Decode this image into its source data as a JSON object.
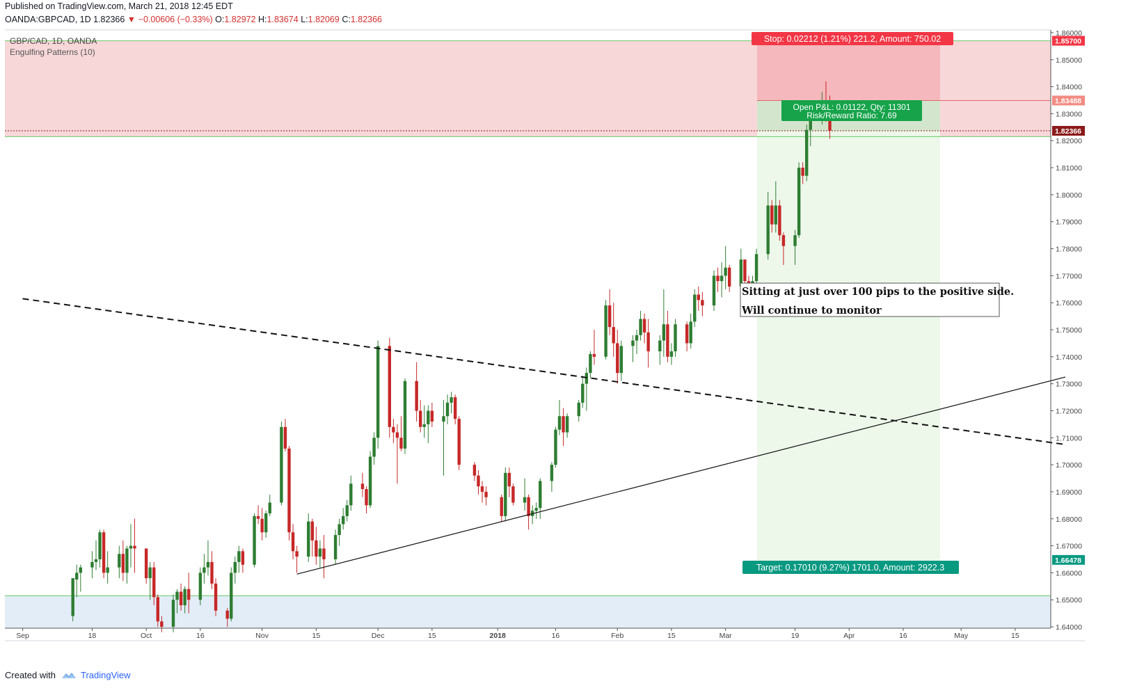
{
  "header": {
    "published": "Published on TradingView.com, March 21, 2018 12:45 EDT",
    "symbol": "OANDA:GBPCAD, 1D",
    "last": "1.82366",
    "change": "▼ −0.00606 (−0.33%)",
    "open_label": "O:",
    "open": "1.82972",
    "high_label": "H:",
    "high": "1.83674",
    "low_label": "L:",
    "low": "1.82069",
    "close_label": "C:",
    "close": "1.82366"
  },
  "legend": {
    "title": "GBP/CAD, 1D, OANDA",
    "indicator": "Engulfing Patterns (10)"
  },
  "annotations": {
    "stop_label": "Stop: 0.02212 (1.21%) 221.2, Amount: 750.02",
    "open_pnl_line1": "Open P&L: 0.01122, Qty: 11301",
    "open_pnl_line2": "Risk/Reward Ratio: 7.69",
    "target_label": "Target: 0.17010 (9.27%) 1701.0, Amount: 2922.3",
    "note_line1": "Sitting at just over 100 pips to the positive side.",
    "note_line2": "Will continue to monitor"
  },
  "price_tags": {
    "stop_level": "1.85700",
    "entry_level": "1.83488",
    "last_price": "1.82366",
    "target_level": "1.66478"
  },
  "footer": {
    "created_with": "Created with",
    "brand": "TradingView"
  },
  "colors": {
    "up": "#2e7d32",
    "down": "#c62828",
    "stop_zone": "#f8d7d9",
    "target_zone": "#edf7ea",
    "support_zone": "#e3edf8",
    "level_line": "#66cc66",
    "stop_tag": "#f23645",
    "target_tag": "#089981"
  },
  "chart_data": {
    "type": "candlestick",
    "title": "GBP/CAD, 1D, OANDA",
    "y_axis": {
      "range": [
        1.6395,
        1.8605
      ],
      "ticks": [
        "1.64000",
        "1.65000",
        "1.66000",
        "1.67000",
        "1.68000",
        "1.69000",
        "1.70000",
        "1.71000",
        "1.72000",
        "1.73000",
        "1.74000",
        "1.75000",
        "1.76000",
        "1.77000",
        "1.78000",
        "1.79000",
        "1.80000",
        "1.81000",
        "1.82000",
        "1.83000",
        "1.84000",
        "1.85000",
        "1.86000"
      ]
    },
    "x_axis": {
      "ticks": [
        "Sep",
        "18",
        "Oct",
        "16",
        "Nov",
        "15",
        "Dec",
        "15",
        "2018",
        "16",
        "Feb",
        "15",
        "Mar",
        "19",
        "Apr",
        "16",
        "May",
        "15"
      ]
    },
    "levels": {
      "stop": 1.857,
      "entry": 1.83488,
      "last": 1.82366,
      "target": 1.66478,
      "position_zone_low": 1.8215,
      "support_top": 1.6515
    },
    "trendlines": {
      "dashed_resistance": {
        "from": [
          "2017-08-31",
          1.7615
        ],
        "to": [
          "2018-05-28",
          1.7075
        ]
      },
      "support": {
        "from": [
          "2017-11-10",
          1.6595
        ],
        "to": [
          "2018-05-28",
          1.7325
        ]
      }
    },
    "candles": [
      [
        "2017-09-13",
        1.644,
        1.658,
        1.642,
        1.658
      ],
      [
        "2017-09-14",
        1.6575,
        1.663,
        1.651,
        1.66
      ],
      [
        "2017-09-15",
        1.66,
        1.663,
        1.653,
        1.662
      ],
      [
        "2017-09-18",
        1.662,
        1.668,
        1.658,
        1.664
      ],
      [
        "2017-09-19",
        1.664,
        1.672,
        1.661,
        1.665
      ],
      [
        "2017-09-20",
        1.665,
        1.676,
        1.662,
        1.675
      ],
      [
        "2017-09-21",
        1.675,
        1.676,
        1.658,
        1.66
      ],
      [
        "2017-09-22",
        1.66,
        1.668,
        1.656,
        1.662
      ],
      [
        "2017-09-25",
        1.662,
        1.67,
        1.658,
        1.667
      ],
      [
        "2017-09-26",
        1.667,
        1.672,
        1.657,
        1.66
      ],
      [
        "2017-09-27",
        1.66,
        1.67,
        1.656,
        1.669
      ],
      [
        "2017-09-28",
        1.669,
        1.678,
        1.662,
        1.67
      ],
      [
        "2017-09-29",
        1.67,
        1.68,
        1.66,
        1.669
      ],
      [
        "2017-10-02",
        1.669,
        1.669,
        1.656,
        1.658
      ],
      [
        "2017-10-03",
        1.658,
        1.664,
        1.65,
        1.662
      ],
      [
        "2017-10-04",
        1.662,
        1.664,
        1.648,
        1.651
      ],
      [
        "2017-10-05",
        1.651,
        1.652,
        1.64,
        1.642
      ],
      [
        "2017-10-06",
        1.642,
        1.644,
        1.638,
        1.64
      ],
      [
        "2017-10-09",
        1.64,
        1.652,
        1.638,
        1.65
      ],
      [
        "2017-10-10",
        1.65,
        1.654,
        1.645,
        1.653
      ],
      [
        "2017-10-11",
        1.653,
        1.656,
        1.646,
        1.648
      ],
      [
        "2017-10-12",
        1.648,
        1.655,
        1.645,
        1.654
      ],
      [
        "2017-10-13",
        1.654,
        1.66,
        1.645,
        1.65
      ],
      [
        "2017-10-16",
        1.65,
        1.662,
        1.648,
        1.66
      ],
      [
        "2017-10-17",
        1.66,
        1.667,
        1.656,
        1.662
      ],
      [
        "2017-10-18",
        1.662,
        1.672,
        1.659,
        1.664
      ],
      [
        "2017-10-19",
        1.664,
        1.668,
        1.654,
        1.656
      ],
      [
        "2017-10-20",
        1.656,
        1.658,
        1.644,
        1.646
      ],
      [
        "2017-10-23",
        1.646,
        1.647,
        1.64,
        1.643
      ],
      [
        "2017-10-24",
        1.643,
        1.662,
        1.642,
        1.66
      ],
      [
        "2017-10-25",
        1.66,
        1.666,
        1.656,
        1.664
      ],
      [
        "2017-10-26",
        1.664,
        1.67,
        1.66,
        1.668
      ],
      [
        "2017-10-27",
        1.668,
        1.669,
        1.66,
        1.663
      ],
      [
        "2017-10-30",
        1.663,
        1.682,
        1.662,
        1.681
      ],
      [
        "2017-10-31",
        1.681,
        1.685,
        1.678,
        1.68
      ],
      [
        "2017-11-01",
        1.68,
        1.684,
        1.672,
        1.675
      ],
      [
        "2017-11-02",
        1.675,
        1.683,
        1.673,
        1.682
      ],
      [
        "2017-11-03",
        1.682,
        1.689,
        1.681,
        1.686
      ],
      [
        "2017-11-06",
        1.686,
        1.716,
        1.685,
        1.714
      ],
      [
        "2017-11-07",
        1.714,
        1.717,
        1.705,
        1.706
      ],
      [
        "2017-11-08",
        1.706,
        1.707,
        1.672,
        1.675
      ],
      [
        "2017-11-09",
        1.675,
        1.678,
        1.665,
        1.668
      ],
      [
        "2017-11-10",
        1.668,
        1.67,
        1.66,
        1.666
      ],
      [
        "2017-11-13",
        1.666,
        1.682,
        1.664,
        1.679
      ],
      [
        "2017-11-14",
        1.679,
        1.68,
        1.666,
        1.672
      ],
      [
        "2017-11-15",
        1.672,
        1.677,
        1.663,
        1.666
      ],
      [
        "2017-11-16",
        1.666,
        1.672,
        1.662,
        1.669
      ],
      [
        "2017-11-17",
        1.669,
        1.674,
        1.658,
        1.665
      ],
      [
        "2017-11-20",
        1.665,
        1.676,
        1.663,
        1.674
      ],
      [
        "2017-11-21",
        1.674,
        1.68,
        1.67,
        1.678
      ],
      [
        "2017-11-22",
        1.678,
        1.684,
        1.676,
        1.681
      ],
      [
        "2017-11-23",
        1.681,
        1.687,
        1.679,
        1.685
      ],
      [
        "2017-11-24",
        1.685,
        1.696,
        1.683,
        1.693
      ],
      [
        "2017-11-27",
        1.693,
        1.697,
        1.688,
        1.691
      ],
      [
        "2017-11-28",
        1.691,
        1.692,
        1.682,
        1.685
      ],
      [
        "2017-11-29",
        1.685,
        1.705,
        1.684,
        1.703
      ],
      [
        "2017-11-30",
        1.703,
        1.712,
        1.7,
        1.71
      ],
      [
        "2017-12-01",
        1.71,
        1.746,
        1.706,
        1.744
      ],
      [
        "2017-12-04",
        1.744,
        1.747,
        1.71,
        1.714
      ],
      [
        "2017-12-05",
        1.714,
        1.717,
        1.708,
        1.712
      ],
      [
        "2017-12-06",
        1.712,
        1.715,
        1.693,
        1.71
      ],
      [
        "2017-12-07",
        1.71,
        1.718,
        1.705,
        1.706
      ],
      [
        "2017-12-08",
        1.706,
        1.732,
        1.704,
        1.731
      ],
      [
        "2017-12-11",
        1.731,
        1.738,
        1.716,
        1.72
      ],
      [
        "2017-12-12",
        1.72,
        1.724,
        1.712,
        1.714
      ],
      [
        "2017-12-13",
        1.714,
        1.722,
        1.71,
        1.715
      ],
      [
        "2017-12-14",
        1.715,
        1.722,
        1.708,
        1.72
      ],
      [
        "2017-12-15",
        1.72,
        1.723,
        1.714,
        1.716
      ],
      [
        "2017-12-18",
        1.716,
        1.724,
        1.696,
        1.718
      ],
      [
        "2017-12-19",
        1.718,
        1.726,
        1.715,
        1.723
      ],
      [
        "2017-12-20",
        1.723,
        1.727,
        1.719,
        1.725
      ],
      [
        "2017-12-21",
        1.725,
        1.726,
        1.715,
        1.717
      ],
      [
        "2017-12-22",
        1.717,
        1.718,
        1.698,
        1.7
      ],
      [
        "2017-12-26",
        1.7,
        1.701,
        1.694,
        1.696
      ],
      [
        "2017-12-27",
        1.696,
        1.698,
        1.689,
        1.692
      ],
      [
        "2017-12-28",
        1.692,
        1.694,
        1.686,
        1.69
      ],
      [
        "2017-12-29",
        1.69,
        1.692,
        1.685,
        1.688
      ],
      [
        "2018-01-02",
        1.688,
        1.689,
        1.679,
        1.681
      ],
      [
        "2018-01-03",
        1.681,
        1.699,
        1.679,
        1.697
      ],
      [
        "2018-01-04",
        1.697,
        1.699,
        1.688,
        1.692
      ],
      [
        "2018-01-05",
        1.692,
        1.693,
        1.685,
        1.686
      ],
      [
        "2018-01-08",
        1.686,
        1.695,
        1.683,
        1.688
      ],
      [
        "2018-01-09",
        1.688,
        1.689,
        1.676,
        1.681
      ],
      [
        "2018-01-10",
        1.681,
        1.685,
        1.678,
        1.683
      ],
      [
        "2018-01-11",
        1.683,
        1.686,
        1.68,
        1.684
      ],
      [
        "2018-01-12",
        1.684,
        1.695,
        1.68,
        1.694
      ],
      [
        "2018-01-15",
        1.694,
        1.701,
        1.69,
        1.7
      ],
      [
        "2018-01-16",
        1.7,
        1.714,
        1.699,
        1.713
      ],
      [
        "2018-01-17",
        1.713,
        1.724,
        1.711,
        1.718
      ],
      [
        "2018-01-18",
        1.718,
        1.721,
        1.707,
        1.712
      ],
      [
        "2018-01-19",
        1.712,
        1.719,
        1.71,
        1.718
      ],
      [
        "2018-01-22",
        1.718,
        1.724,
        1.716,
        1.723
      ],
      [
        "2018-01-23",
        1.723,
        1.733,
        1.721,
        1.73
      ],
      [
        "2018-01-24",
        1.73,
        1.736,
        1.72,
        1.734
      ],
      [
        "2018-01-25",
        1.734,
        1.742,
        1.732,
        1.741
      ],
      [
        "2018-01-26",
        1.741,
        1.75,
        1.737,
        1.74
      ],
      [
        "2018-01-29",
        1.74,
        1.761,
        1.739,
        1.759
      ],
      [
        "2018-01-30",
        1.759,
        1.765,
        1.748,
        1.751
      ],
      [
        "2018-01-31",
        1.751,
        1.76,
        1.74,
        1.745
      ],
      [
        "2018-02-01",
        1.745,
        1.75,
        1.73,
        1.734
      ],
      [
        "2018-02-02",
        1.734,
        1.746,
        1.731,
        1.744
      ],
      [
        "2018-02-05",
        1.744,
        1.748,
        1.738,
        1.746
      ],
      [
        "2018-02-06",
        1.746,
        1.75,
        1.741,
        1.748
      ],
      [
        "2018-02-07",
        1.748,
        1.757,
        1.746,
        1.754
      ],
      [
        "2018-02-08",
        1.754,
        1.756,
        1.745,
        1.749
      ],
      [
        "2018-02-09",
        1.749,
        1.754,
        1.736,
        1.742
      ],
      [
        "2018-02-12",
        1.742,
        1.748,
        1.737,
        1.746
      ],
      [
        "2018-02-13",
        1.746,
        1.765,
        1.74,
        1.752
      ],
      [
        "2018-02-14",
        1.752,
        1.757,
        1.738,
        1.74
      ],
      [
        "2018-02-15",
        1.74,
        1.745,
        1.737,
        1.742
      ],
      [
        "2018-02-16",
        1.742,
        1.754,
        1.74,
        1.752
      ],
      [
        "2018-02-19",
        1.752,
        1.753,
        1.742,
        1.745
      ],
      [
        "2018-02-20",
        1.745,
        1.756,
        1.743,
        1.753
      ],
      [
        "2018-02-21",
        1.753,
        1.765,
        1.751,
        1.763
      ],
      [
        "2018-02-22",
        1.763,
        1.766,
        1.757,
        1.761
      ],
      [
        "2018-02-23",
        1.761,
        1.764,
        1.755,
        1.759
      ],
      [
        "2018-02-26",
        1.759,
        1.772,
        1.757,
        1.77
      ],
      [
        "2018-02-27",
        1.77,
        1.773,
        1.764,
        1.768
      ],
      [
        "2018-02-28",
        1.768,
        1.775,
        1.762,
        1.77
      ],
      [
        "2018-03-01",
        1.77,
        1.781,
        1.765,
        1.773
      ],
      [
        "2018-03-02",
        1.773,
        1.774,
        1.764,
        1.766
      ],
      [
        "2018-03-05",
        1.766,
        1.78,
        1.764,
        1.776
      ],
      [
        "2018-03-06",
        1.776,
        1.776,
        1.764,
        1.768
      ],
      [
        "2018-03-07",
        1.768,
        1.77,
        1.762,
        1.765
      ],
      [
        "2018-03-08",
        1.765,
        1.77,
        1.76,
        1.768
      ],
      [
        "2018-03-09",
        1.768,
        1.78,
        1.766,
        1.778
      ],
      [
        "2018-03-12",
        1.778,
        1.801,
        1.776,
        1.796
      ],
      [
        "2018-03-13",
        1.796,
        1.798,
        1.786,
        1.789
      ],
      [
        "2018-03-14",
        1.789,
        1.805,
        1.786,
        1.796
      ],
      [
        "2018-03-15",
        1.796,
        1.798,
        1.783,
        1.785
      ],
      [
        "2018-03-16",
        1.785,
        1.786,
        1.774,
        1.781
      ],
      [
        "2018-03-19",
        1.781,
        1.787,
        1.774,
        1.785
      ],
      [
        "2018-03-20",
        1.785,
        1.812,
        1.784,
        1.81
      ],
      [
        "2018-03-21",
        1.81,
        1.812,
        1.804,
        1.807
      ],
      [
        "2018-03-22",
        1.807,
        1.826,
        1.805,
        1.824
      ],
      [
        "2018-03-23",
        1.824,
        1.83,
        1.818,
        1.828
      ],
      [
        "2018-03-26",
        1.828,
        1.838,
        1.826,
        1.835
      ],
      [
        "2018-03-27",
        1.835,
        1.842,
        1.827,
        1.831
      ],
      [
        "2018-03-28",
        1.8297,
        1.8367,
        1.8207,
        1.8237
      ]
    ]
  }
}
